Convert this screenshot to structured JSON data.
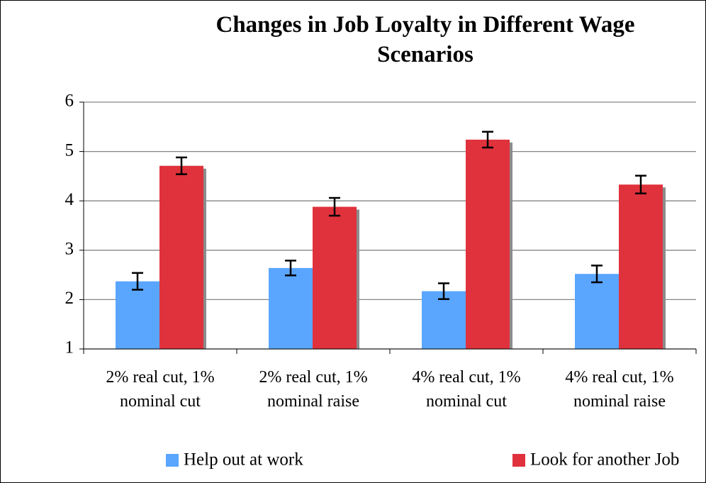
{
  "chart_data": {
    "type": "bar",
    "title": "Changes in Job Loyalty in Different Wage Scenarios",
    "categories": [
      "2% real cut, 1% nominal cut",
      "2% real cut, 1% nominal raise",
      "4% real cut, 1% nominal cut",
      "4% real cut, 1% nominal raise"
    ],
    "series": [
      {
        "name": "Help out at work",
        "color": "#5aa6ff",
        "values": [
          2.37,
          2.64,
          2.17,
          2.52
        ],
        "errors": [
          0.17,
          0.15,
          0.16,
          0.17
        ]
      },
      {
        "name": "Look for another Job",
        "color": "#e0323c",
        "values": [
          4.71,
          3.88,
          5.24,
          4.33
        ],
        "errors": [
          0.17,
          0.18,
          0.16,
          0.18
        ]
      }
    ],
    "ylim": [
      1,
      6
    ],
    "yticks": [
      1,
      2,
      3,
      4,
      5,
      6
    ],
    "grid": true,
    "legend": "bottom"
  }
}
